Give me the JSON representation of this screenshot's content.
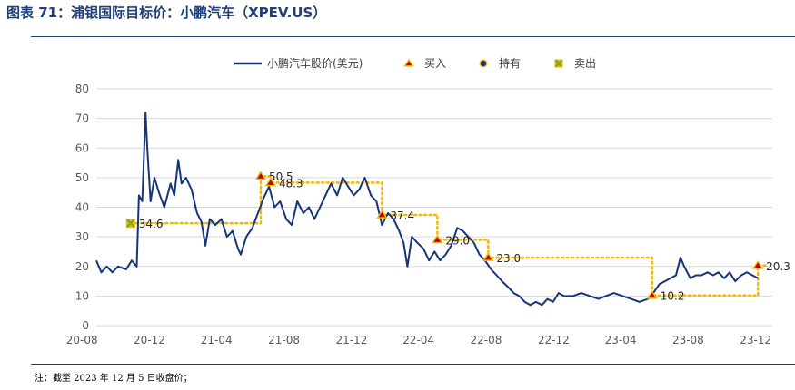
{
  "figure_title": "图表 71：浦银国际目标价：小鹏汽车（XPEV.US）",
  "footnote": "注：截至 2023 年 12 月 5 日收盘价；",
  "colors": {
    "price_line": "#16357a",
    "target_line": "#f5b800",
    "buy_marker": "#c00000",
    "buy_marker_fill": "#f5b800",
    "sell_marker": "#7aa82a",
    "axis_text": "#595959",
    "grid": "#d9d9d9",
    "accent": "#1f3f7a"
  },
  "chart_data": {
    "type": "line",
    "title": "",
    "xlabel": "",
    "ylabel": "",
    "ylim": [
      0,
      80
    ],
    "yticks": [
      0,
      10,
      20,
      30,
      40,
      50,
      60,
      70,
      80
    ],
    "xlim": [
      "2020-08-27",
      "2023-12-31"
    ],
    "xticks": [
      {
        "date": "2020-08-01",
        "label": "20-08"
      },
      {
        "date": "2020-12-01",
        "label": "20-12"
      },
      {
        "date": "2021-04-01",
        "label": "21-04"
      },
      {
        "date": "2021-08-01",
        "label": "21-08"
      },
      {
        "date": "2021-12-01",
        "label": "21-12"
      },
      {
        "date": "2022-04-01",
        "label": "22-04"
      },
      {
        "date": "2022-08-01",
        "label": "22-08"
      },
      {
        "date": "2022-12-01",
        "label": "22-12"
      },
      {
        "date": "2023-04-01",
        "label": "23-04"
      },
      {
        "date": "2023-08-01",
        "label": "23-08"
      },
      {
        "date": "2023-12-01",
        "label": "23-12"
      }
    ],
    "grid": true,
    "legend_position": "top",
    "legend": [
      {
        "name": "小鹏汽车股价(美元)",
        "kind": "line"
      },
      {
        "name": "买入",
        "kind": "triangle"
      },
      {
        "name": "持有",
        "kind": "circle"
      },
      {
        "name": "卖出",
        "kind": "cross"
      }
    ],
    "price_series": {
      "name": "小鹏汽车股价(美元)",
      "points": [
        [
          "2020-08-27",
          22
        ],
        [
          "2020-09-05",
          18
        ],
        [
          "2020-09-15",
          20
        ],
        [
          "2020-09-25",
          18
        ],
        [
          "2020-10-05",
          20
        ],
        [
          "2020-10-20",
          19
        ],
        [
          "2020-10-30",
          22
        ],
        [
          "2020-11-08",
          20
        ],
        [
          "2020-11-12",
          44
        ],
        [
          "2020-11-18",
          42
        ],
        [
          "2020-11-24",
          72
        ],
        [
          "2020-11-27",
          60
        ],
        [
          "2020-12-03",
          42
        ],
        [
          "2020-12-10",
          50
        ],
        [
          "2020-12-18",
          45
        ],
        [
          "2020-12-28",
          40
        ],
        [
          "2021-01-08",
          48
        ],
        [
          "2021-01-15",
          44
        ],
        [
          "2021-01-22",
          56
        ],
        [
          "2021-01-28",
          48
        ],
        [
          "2021-02-05",
          50
        ],
        [
          "2021-02-15",
          46
        ],
        [
          "2021-02-25",
          38
        ],
        [
          "2021-03-05",
          35
        ],
        [
          "2021-03-12",
          27
        ],
        [
          "2021-03-20",
          36
        ],
        [
          "2021-03-30",
          34
        ],
        [
          "2021-04-10",
          36
        ],
        [
          "2021-04-20",
          30
        ],
        [
          "2021-04-30",
          32
        ],
        [
          "2021-05-10",
          26
        ],
        [
          "2021-05-15",
          24
        ],
        [
          "2021-05-25",
          30
        ],
        [
          "2021-06-05",
          33
        ],
        [
          "2021-06-15",
          38
        ],
        [
          "2021-06-25",
          43
        ],
        [
          "2021-07-05",
          47
        ],
        [
          "2021-07-15",
          40
        ],
        [
          "2021-07-25",
          42
        ],
        [
          "2021-08-05",
          36
        ],
        [
          "2021-08-15",
          34
        ],
        [
          "2021-08-25",
          42
        ],
        [
          "2021-09-05",
          38
        ],
        [
          "2021-09-15",
          40
        ],
        [
          "2021-09-25",
          36
        ],
        [
          "2021-10-05",
          40
        ],
        [
          "2021-10-15",
          44
        ],
        [
          "2021-10-25",
          48
        ],
        [
          "2021-11-05",
          44
        ],
        [
          "2021-11-15",
          50
        ],
        [
          "2021-11-25",
          47
        ],
        [
          "2021-12-05",
          44
        ],
        [
          "2021-12-15",
          46
        ],
        [
          "2021-12-25",
          50
        ],
        [
          "2022-01-05",
          44
        ],
        [
          "2022-01-15",
          42
        ],
        [
          "2022-01-25",
          34
        ],
        [
          "2022-02-05",
          38
        ],
        [
          "2022-02-15",
          36
        ],
        [
          "2022-02-25",
          32
        ],
        [
          "2022-03-05",
          28
        ],
        [
          "2022-03-12",
          20
        ],
        [
          "2022-03-20",
          30
        ],
        [
          "2022-03-30",
          28
        ],
        [
          "2022-04-10",
          26
        ],
        [
          "2022-04-20",
          22
        ],
        [
          "2022-04-30",
          25
        ],
        [
          "2022-05-10",
          22
        ],
        [
          "2022-05-20",
          24
        ],
        [
          "2022-05-30",
          27
        ],
        [
          "2022-06-10",
          33
        ],
        [
          "2022-06-20",
          32
        ],
        [
          "2022-06-30",
          30
        ],
        [
          "2022-07-10",
          28
        ],
        [
          "2022-07-20",
          24
        ],
        [
          "2022-07-30",
          22
        ],
        [
          "2022-08-10",
          19
        ],
        [
          "2022-08-20",
          17
        ],
        [
          "2022-08-30",
          15
        ],
        [
          "2022-09-10",
          13
        ],
        [
          "2022-09-20",
          11
        ],
        [
          "2022-09-30",
          10
        ],
        [
          "2022-10-10",
          8
        ],
        [
          "2022-10-20",
          7
        ],
        [
          "2022-10-30",
          8
        ],
        [
          "2022-11-10",
          7
        ],
        [
          "2022-11-20",
          9
        ],
        [
          "2022-11-30",
          8
        ],
        [
          "2022-12-10",
          11
        ],
        [
          "2022-12-20",
          10
        ],
        [
          "2023-01-05",
          10
        ],
        [
          "2023-01-20",
          11
        ],
        [
          "2023-02-05",
          10
        ],
        [
          "2023-02-20",
          9
        ],
        [
          "2023-03-05",
          10
        ],
        [
          "2023-03-20",
          11
        ],
        [
          "2023-04-05",
          10
        ],
        [
          "2023-04-20",
          9
        ],
        [
          "2023-05-05",
          8
        ],
        [
          "2023-05-20",
          9
        ],
        [
          "2023-05-30",
          11
        ],
        [
          "2023-06-10",
          14
        ],
        [
          "2023-06-20",
          15
        ],
        [
          "2023-06-30",
          16
        ],
        [
          "2023-07-10",
          17
        ],
        [
          "2023-07-18",
          23
        ],
        [
          "2023-07-25",
          20
        ],
        [
          "2023-08-05",
          16
        ],
        [
          "2023-08-15",
          17
        ],
        [
          "2023-08-25",
          17
        ],
        [
          "2023-09-05",
          18
        ],
        [
          "2023-09-15",
          17
        ],
        [
          "2023-09-25",
          18
        ],
        [
          "2023-10-05",
          16
        ],
        [
          "2023-10-15",
          18
        ],
        [
          "2023-10-25",
          15
        ],
        [
          "2023-11-05",
          17
        ],
        [
          "2023-11-15",
          18
        ],
        [
          "2023-11-25",
          17
        ],
        [
          "2023-12-05",
          16
        ]
      ]
    },
    "target_price_series": {
      "points": [
        [
          "2020-10-28",
          34.6
        ],
        [
          "2021-06-20",
          34.6
        ],
        [
          "2021-06-20",
          50.5
        ],
        [
          "2021-07-08",
          50.5
        ],
        [
          "2021-07-08",
          48.3
        ],
        [
          "2022-01-25",
          48.3
        ],
        [
          "2022-01-25",
          37.4
        ],
        [
          "2022-05-05",
          37.4
        ],
        [
          "2022-05-05",
          29.0
        ],
        [
          "2022-08-05",
          29.0
        ],
        [
          "2022-08-05",
          23.0
        ],
        [
          "2023-05-28",
          23.0
        ],
        [
          "2023-05-28",
          10.2
        ],
        [
          "2023-12-05",
          10.2
        ],
        [
          "2023-12-05",
          20.3
        ],
        [
          "2023-12-20",
          20.3
        ]
      ]
    },
    "ratings": [
      {
        "date": "2020-10-28",
        "target": 34.6,
        "label": "34.6",
        "rating": "卖出"
      },
      {
        "date": "2021-06-20",
        "target": 50.5,
        "label": "50.5",
        "rating": "买入"
      },
      {
        "date": "2021-07-08",
        "target": 48.3,
        "label": "48.3",
        "rating": "买入"
      },
      {
        "date": "2022-01-25",
        "target": 37.4,
        "label": "37.4",
        "rating": "买入"
      },
      {
        "date": "2022-05-05",
        "target": 29.0,
        "label": "29.0",
        "rating": "买入"
      },
      {
        "date": "2022-08-05",
        "target": 23.0,
        "label": "23.0",
        "rating": "买入"
      },
      {
        "date": "2023-05-28",
        "target": 10.2,
        "label": "10.2",
        "rating": "买入"
      },
      {
        "date": "2023-12-05",
        "target": 20.3,
        "label": "20.3",
        "rating": "买入"
      }
    ]
  }
}
